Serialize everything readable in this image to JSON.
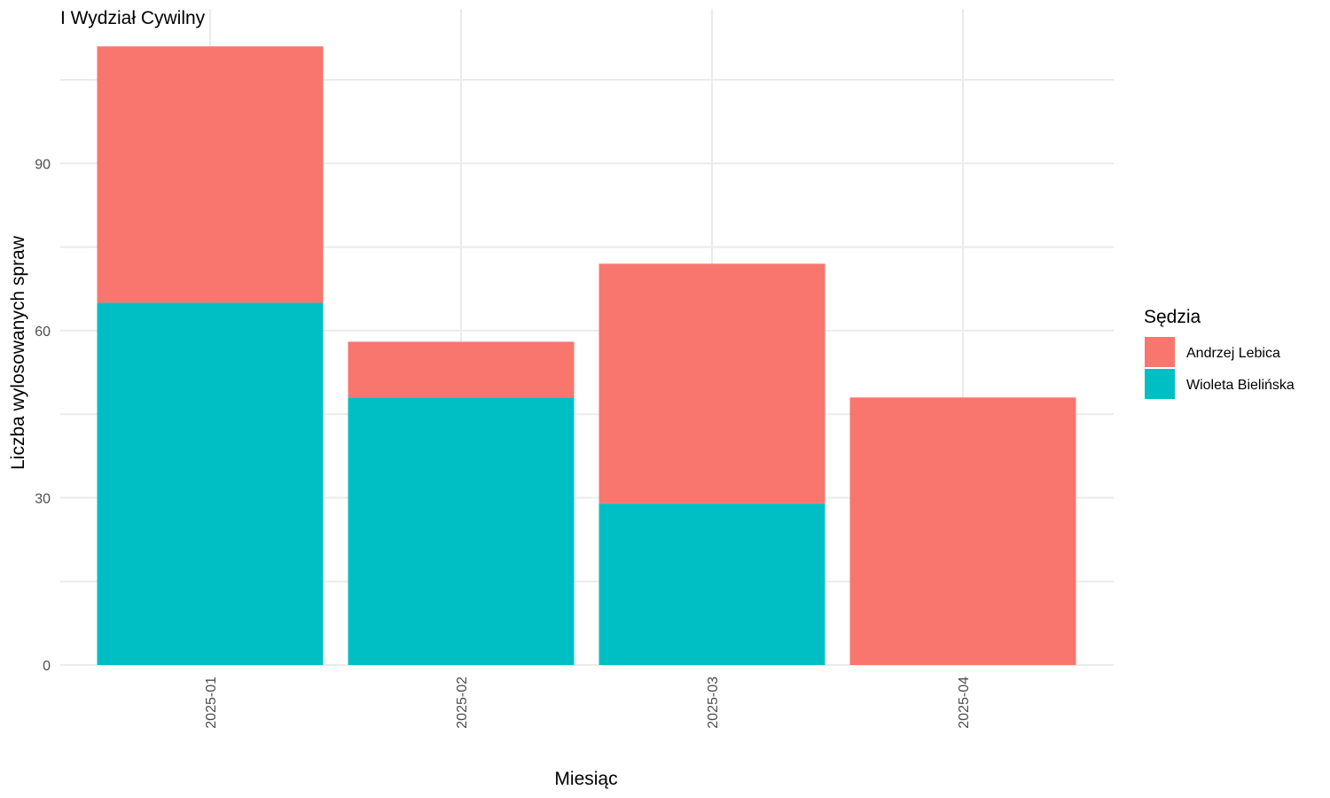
{
  "chart_data": {
    "type": "bar",
    "stacked": true,
    "title": "I Wydział Cywilny",
    "xlabel": "Miesiąc",
    "ylabel": "Liczba wylosowanych spraw",
    "categories": [
      "2025-01",
      "2025-02",
      "2025-03",
      "2025-04"
    ],
    "series": [
      {
        "name": "Wioleta Bielińska",
        "color": "#00BFC4",
        "values": [
          65,
          48,
          29,
          0
        ]
      },
      {
        "name": "Andrzej Lebica",
        "color": "#F8766D",
        "values": [
          46,
          10,
          43,
          48
        ]
      }
    ],
    "ylim": [
      0,
      112
    ],
    "yticks": [
      0,
      30,
      60,
      90
    ],
    "grid": true,
    "legend": {
      "title": "Sędzia",
      "position": "right",
      "order": [
        "Andrzej Lebica",
        "Wioleta Bielińska"
      ]
    }
  }
}
